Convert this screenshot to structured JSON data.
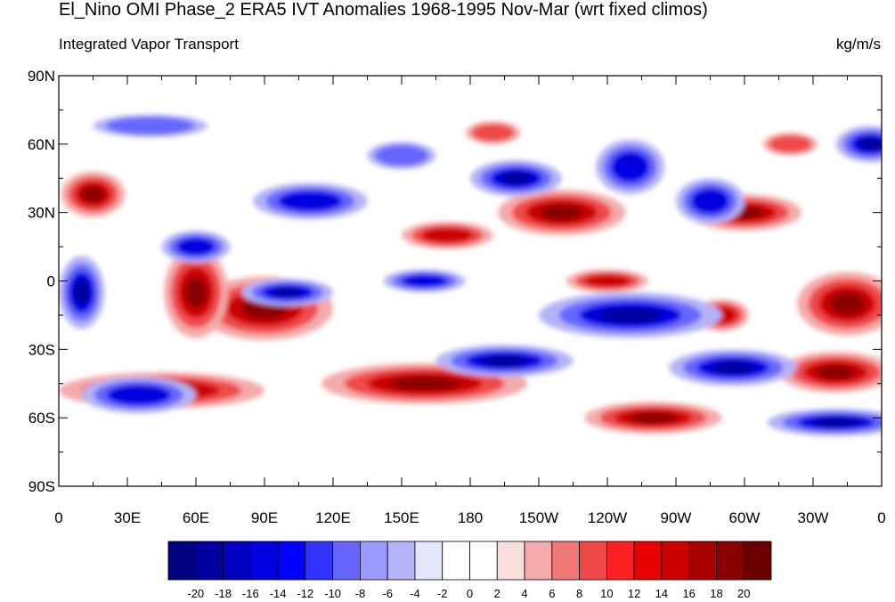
{
  "title": "El_Nino OMI Phase_2 ERA5 IVT Anomalies 1968-1995 Nov-Mar (wrt fixed climos)",
  "left_subtitle": "Integrated Vapor Transport",
  "right_subtitle": "kg/m/s",
  "colors": {
    "high": "#7a0000",
    "low": "#00007a",
    "neutral": "#ffffff"
  },
  "chart_data": {
    "type": "heatmap",
    "projection": "cylindrical equidistant",
    "lat_range": [
      -90,
      90
    ],
    "lon_range": [
      0,
      360
    ],
    "y_ticks": [
      "90N",
      "60N",
      "30N",
      "0",
      "30S",
      "60S",
      "90S"
    ],
    "x_ticks": [
      "0",
      "30E",
      "60E",
      "90E",
      "120E",
      "150E",
      "180",
      "150W",
      "120W",
      "90W",
      "60W",
      "30W",
      "0"
    ],
    "colorbar": {
      "labels": [
        "-20",
        "-18",
        "-16",
        "-14",
        "-12",
        "-10",
        "-8",
        "-6",
        "-4",
        "-2",
        "0",
        "2",
        "4",
        "6",
        "8",
        "10",
        "12",
        "14",
        "16",
        "18",
        "20"
      ],
      "colors": [
        "#000080",
        "#0000a0",
        "#0000c0",
        "#0000e0",
        "#0000ff",
        "#3333ff",
        "#6666ff",
        "#9999ff",
        "#b3b3f5",
        "#e6e6fa",
        "#ffffff",
        "#ffffff",
        "#fadede",
        "#f5aaaa",
        "#f27878",
        "#f04848",
        "#ff2020",
        "#e80000",
        "#cc0000",
        "#a80000",
        "#8a0000",
        "#6a0000"
      ]
    },
    "anomaly_regions": [
      {
        "sign": "positive",
        "lon": 15,
        "lat": 38,
        "rx": 14,
        "ry": 10,
        "intensity": 3
      },
      {
        "sign": "positive",
        "lon": 90,
        "lat": -12,
        "rx": 30,
        "ry": 14,
        "intensity": 3
      },
      {
        "sign": "positive",
        "lon": 60,
        "lat": -5,
        "rx": 14,
        "ry": 20,
        "intensity": 3
      },
      {
        "sign": "positive",
        "lon": 45,
        "lat": -48,
        "rx": 45,
        "ry": 8,
        "intensity": 3
      },
      {
        "sign": "positive",
        "lon": 160,
        "lat": -45,
        "rx": 45,
        "ry": 9,
        "intensity": 3
      },
      {
        "sign": "positive",
        "lon": 260,
        "lat": -60,
        "rx": 30,
        "ry": 7,
        "intensity": 3
      },
      {
        "sign": "positive",
        "lon": 345,
        "lat": -10,
        "rx": 22,
        "ry": 14,
        "intensity": 3
      },
      {
        "sign": "positive",
        "lon": 340,
        "lat": -40,
        "rx": 25,
        "ry": 9,
        "intensity": 3
      },
      {
        "sign": "positive",
        "lon": 300,
        "lat": 30,
        "rx": 25,
        "ry": 8,
        "intensity": 3
      },
      {
        "sign": "positive",
        "lon": 220,
        "lat": 30,
        "rx": 28,
        "ry": 10,
        "intensity": 3
      },
      {
        "sign": "positive",
        "lon": 170,
        "lat": 20,
        "rx": 20,
        "ry": 6,
        "intensity": 2
      },
      {
        "sign": "positive",
        "lon": 240,
        "lat": 0,
        "rx": 18,
        "ry": 5,
        "intensity": 2
      },
      {
        "sign": "positive",
        "lon": 290,
        "lat": -15,
        "rx": 12,
        "ry": 7,
        "intensity": 2
      },
      {
        "sign": "positive",
        "lon": 320,
        "lat": 60,
        "rx": 12,
        "ry": 5,
        "intensity": 1
      },
      {
        "sign": "positive",
        "lon": 190,
        "lat": 65,
        "rx": 12,
        "ry": 5,
        "intensity": 1
      },
      {
        "sign": "negative",
        "lon": 10,
        "lat": -5,
        "rx": 10,
        "ry": 16,
        "intensity": 3
      },
      {
        "sign": "negative",
        "lon": 35,
        "lat": -50,
        "rx": 25,
        "ry": 8,
        "intensity": 2
      },
      {
        "sign": "negative",
        "lon": 110,
        "lat": 35,
        "rx": 25,
        "ry": 8,
        "intensity": 2
      },
      {
        "sign": "negative",
        "lon": 100,
        "lat": -5,
        "rx": 20,
        "ry": 6,
        "intensity": 3
      },
      {
        "sign": "negative",
        "lon": 250,
        "lat": -15,
        "rx": 40,
        "ry": 10,
        "intensity": 3
      },
      {
        "sign": "negative",
        "lon": 295,
        "lat": -38,
        "rx": 28,
        "ry": 8,
        "intensity": 3
      },
      {
        "sign": "negative",
        "lon": 195,
        "lat": -35,
        "rx": 30,
        "ry": 7,
        "intensity": 3
      },
      {
        "sign": "negative",
        "lon": 200,
        "lat": 45,
        "rx": 20,
        "ry": 8,
        "intensity": 3
      },
      {
        "sign": "negative",
        "lon": 250,
        "lat": 50,
        "rx": 15,
        "ry": 12,
        "intensity": 2
      },
      {
        "sign": "negative",
        "lon": 340,
        "lat": -62,
        "rx": 30,
        "ry": 6,
        "intensity": 3
      },
      {
        "sign": "negative",
        "lon": 355,
        "lat": 60,
        "rx": 15,
        "ry": 8,
        "intensity": 3
      },
      {
        "sign": "negative",
        "lon": 285,
        "lat": 35,
        "rx": 15,
        "ry": 10,
        "intensity": 2
      },
      {
        "sign": "negative",
        "lon": 60,
        "lat": 15,
        "rx": 15,
        "ry": 7,
        "intensity": 2
      },
      {
        "sign": "negative",
        "lon": 160,
        "lat": 0,
        "rx": 18,
        "ry": 5,
        "intensity": 2
      },
      {
        "sign": "negative",
        "lon": 40,
        "lat": 68,
        "rx": 25,
        "ry": 5,
        "intensity": 1
      },
      {
        "sign": "negative",
        "lon": 150,
        "lat": 55,
        "rx": 15,
        "ry": 6,
        "intensity": 1
      }
    ]
  }
}
